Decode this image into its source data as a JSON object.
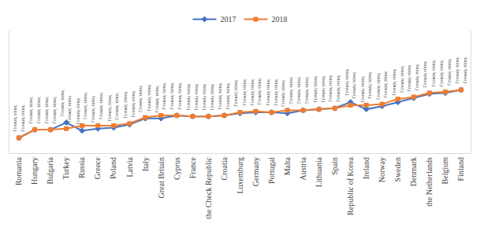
{
  "chart_data": {
    "type": "line",
    "categories": [
      "Romania",
      "Hungary",
      "Bulgaria",
      "Turkey",
      "Russia",
      "Greece",
      "Poland",
      "Latvia",
      "Italy",
      "Great Britain",
      "Cyprus",
      "France",
      "the Check Republic",
      "Croatia",
      "Luxemburg",
      "Germany",
      "Portugal",
      "Malta",
      "Austria",
      "Lithuania",
      "Spain",
      "Republic of Korea",
      "Ireland",
      "Norway",
      "Sweden",
      "Denmark",
      "the Netherlands",
      "Belgium",
      "Finland"
    ],
    "series": [
      {
        "name": "2017",
        "color": "#4472c4",
        "marker": "diamond",
        "values": [
          15,
          23,
          23,
          30,
          22,
          24,
          25,
          28,
          34,
          34,
          37,
          36,
          36,
          37,
          39,
          40,
          40,
          39,
          42,
          43,
          44,
          50,
          43,
          46,
          50,
          54,
          58,
          59,
          62
        ],
        "value_labels": [
          "Γενικός τύπος",
          "Γενικός τύπος",
          "Γενικός τύπος",
          "Γενικός τύπος",
          "Γενικός τύπος",
          "Γενικός τύπος",
          "Γενικός τύπος",
          "Γενικός τύπος",
          "Γενικός τύπος",
          "Γενικός τύπος",
          "Γενικός τύπος",
          "Γενικός τύπος",
          "Γενικός τύπος",
          "Γενικός τύπος",
          "Γενικός τύπος",
          "Γενικός τύπος",
          "Γενικός τύπος",
          "Γενικός τύπος",
          "Γενικός τύπος",
          "Γενικός τύπος",
          "Γενικός τύπος",
          "Γενικός τύπος",
          "Γενικός τύπος",
          "Γενικός τύπος",
          "Γενικός τύπος",
          "Γενικός τύπος",
          "Γενικός τύπος",
          "Γενικός τύπος",
          "Γενικός τύπος"
        ]
      },
      {
        "name": "2018",
        "color": "#ed7d31",
        "marker": "square",
        "values": [
          15,
          23,
          23,
          24,
          27,
          27,
          27,
          29,
          35,
          37,
          37,
          36,
          36,
          37,
          40,
          41,
          40,
          42,
          42,
          43,
          44,
          47,
          47,
          48,
          53,
          55,
          59,
          60,
          62
        ],
        "value_labels": [
          "Γενικός τύπος",
          "Γενικός τύπος",
          "Γενικός τύπος",
          "Γενικός τύπος",
          "Γενικός τύπος",
          "Γενικός τύπος",
          "Γενικός τύπος",
          "Γενικός τύπος",
          "Γενικός τύπος",
          "Γενικός τύπος",
          "Γενικός τύπος",
          "Γενικός τύπος",
          "Γενικός τύπος",
          "Γενικός τύπος",
          "Γενικός τύπος",
          "Γενικός τύπος",
          "Γενικός τύπος",
          "Γενικός τύπος",
          "Γενικός τύπος",
          "Γενικός τύπος",
          "Γενικός τύπος",
          "Γενικός τύπος",
          "Γενικός τύπος",
          "Γενικός τύπος",
          "Γενικός τύπος",
          "Γενικός τύπος",
          "Γενικός τύπος",
          "Γενικός τύπος",
          "Γενικός τύπος"
        ]
      }
    ],
    "ylim": [
      0,
      120
    ],
    "grid": false,
    "legend": "top",
    "data_labels": true,
    "tick_labels": "x"
  }
}
